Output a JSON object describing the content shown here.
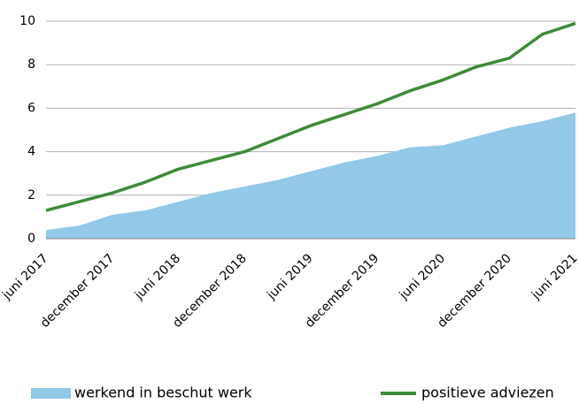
{
  "chart_data": {
    "type": "line",
    "categories": [
      "juni 2017",
      null,
      "december 2017",
      null,
      "juni 2018",
      null,
      "december 2018",
      null,
      "juni 2019",
      null,
      "december 2019",
      null,
      "juni 2020",
      null,
      "december 2020",
      null,
      "juni 2021"
    ],
    "series": [
      {
        "name": "werkend in beschut werk",
        "type": "area",
        "color": "#93c9e8",
        "values": [
          0.4,
          0.6,
          1.1,
          1.3,
          1.7,
          2.1,
          2.4,
          2.7,
          3.1,
          3.5,
          3.8,
          4.2,
          4.3,
          4.7,
          5.1,
          5.4,
          5.8
        ]
      },
      {
        "name": "positieve adviezen",
        "type": "line",
        "color": "#3d8b37",
        "values": [
          1.3,
          1.7,
          2.1,
          2.6,
          3.2,
          3.6,
          4.0,
          4.6,
          5.2,
          5.7,
          6.2,
          6.8,
          7.3,
          7.9,
          8.3,
          9.4,
          9.9
        ]
      }
    ],
    "ylim": [
      0,
      10
    ],
    "yticks": [
      0,
      2,
      4,
      6,
      8,
      10
    ],
    "grid": true
  }
}
